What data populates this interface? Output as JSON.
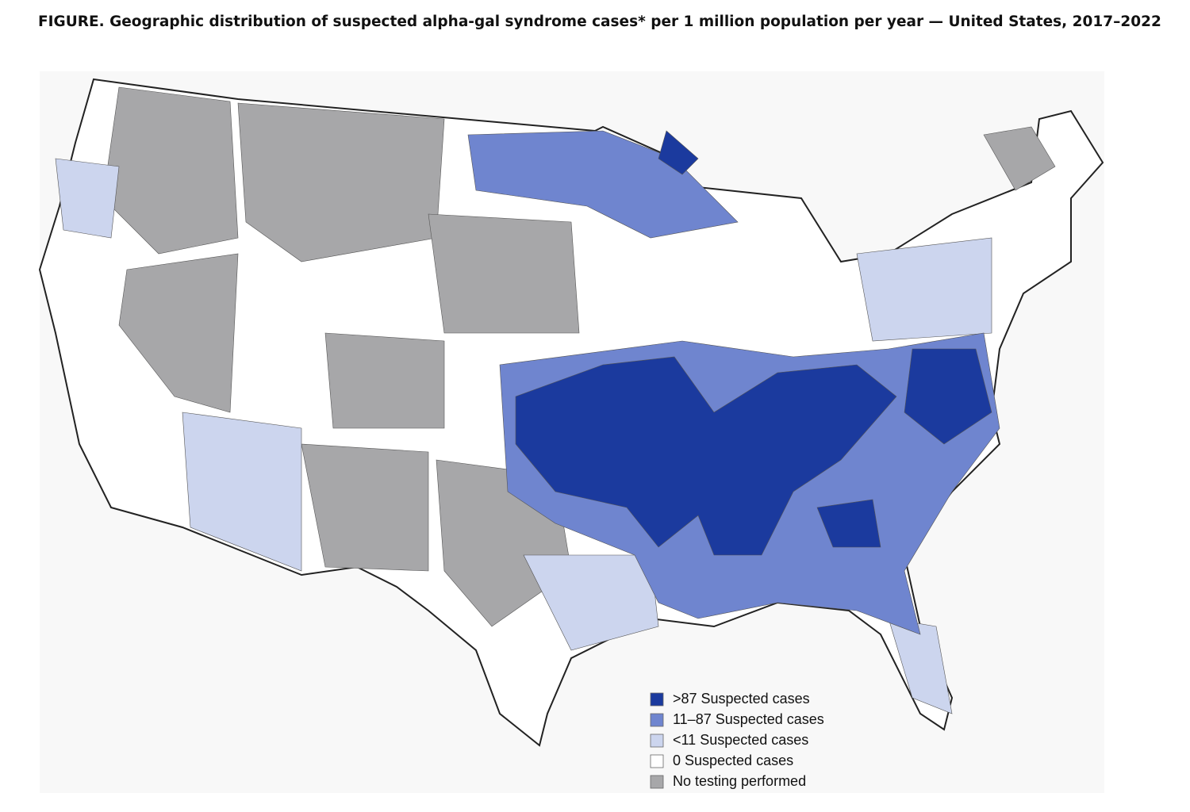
{
  "title": "FIGURE. Geographic distribution of suspected alpha-gal syndrome cases* per 1 million population per year — United States, 2017–2022",
  "legend": {
    "items": [
      {
        "label": ">87 Suspected cases",
        "color": "#1b3a9e"
      },
      {
        "label": "11–87 Suspected cases",
        "color": "#6f85cf"
      },
      {
        "label": "<11 Suspected cases",
        "color": "#ccd5ee"
      },
      {
        "label": "0 Suspected cases",
        "color": "#ffffff"
      },
      {
        "label": "No testing performed",
        "color": "#a7a7a9"
      }
    ]
  }
}
